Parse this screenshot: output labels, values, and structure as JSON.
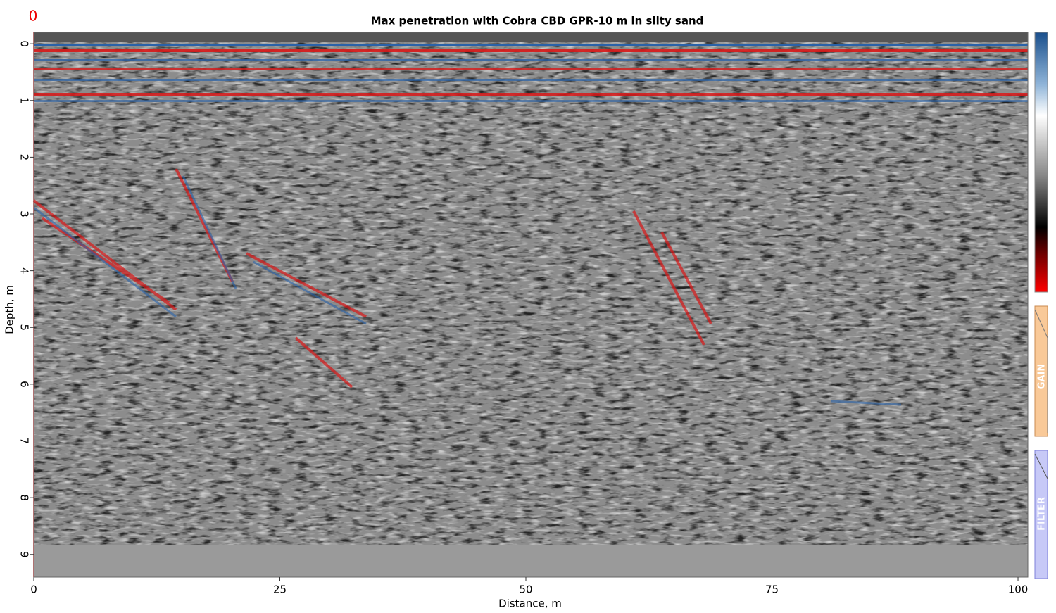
{
  "chart_data": {
    "type": "radargram",
    "title": "Max penetration with Cobra CBD GPR-10 m in silty sand",
    "x_label": "Distance, m",
    "y_label": "Depth, m",
    "xlim": [
      0,
      101
    ],
    "xticks": [
      0,
      25,
      50,
      75,
      100
    ],
    "ylim": [
      -0.2,
      9.4
    ],
    "yticks": [
      0,
      1,
      2,
      3,
      4,
      5,
      6,
      7,
      8,
      9
    ]
  },
  "ui": {
    "marker": "0",
    "panels": [
      "GAIN",
      "FILTER"
    ]
  }
}
